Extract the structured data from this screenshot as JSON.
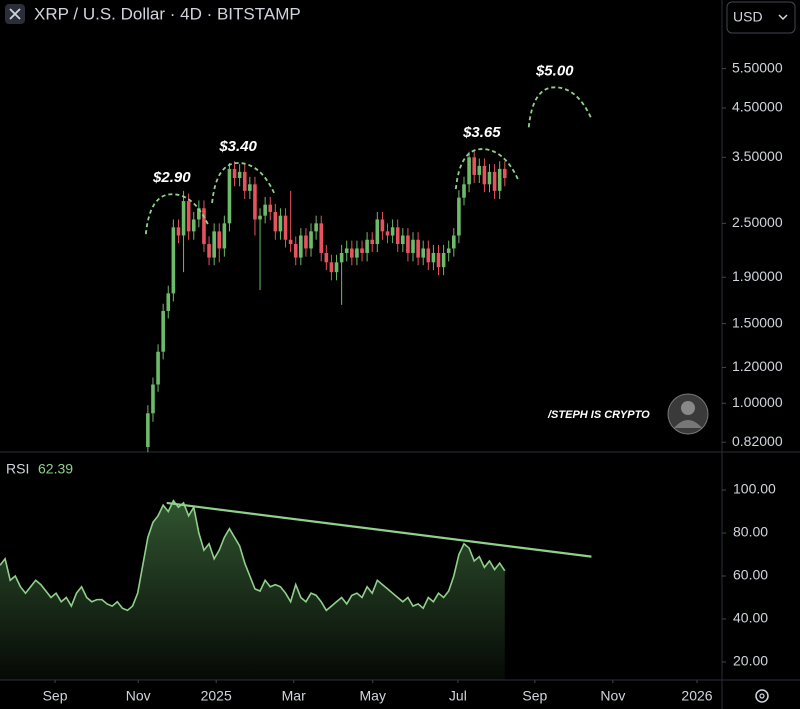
{
  "chart_data": {
    "type": "candlestick",
    "title": "XRP / U.S. Dollar · 4D · BITSTAMP",
    "currency": "USD",
    "log_scale": true,
    "up_color": "#6dbb6a",
    "down_color": "#e5535e",
    "xlim": [
      0,
      141.6
    ],
    "xticks": [
      {
        "value": 10.8,
        "label": "Sep"
      },
      {
        "value": 27.1,
        "label": "Nov"
      },
      {
        "value": 42.4,
        "label": "2025"
      },
      {
        "value": 57.6,
        "label": "Mar"
      },
      {
        "value": 73.1,
        "label": "May"
      },
      {
        "value": 89.8,
        "label": "Jul"
      },
      {
        "value": 104.9,
        "label": "Sep"
      },
      {
        "value": 120.2,
        "label": "Nov"
      },
      {
        "value": 136.7,
        "label": "2026"
      }
    ],
    "ylim": [
      0.78,
      7.8
    ],
    "yticks": [
      {
        "value": 5.5,
        "label": "5.50000"
      },
      {
        "value": 4.5,
        "label": "4.50000"
      },
      {
        "value": 3.5,
        "label": "3.50000"
      },
      {
        "value": 2.5,
        "label": "2.50000"
      },
      {
        "value": 1.9,
        "label": "1.90000"
      },
      {
        "value": 1.5,
        "label": "1.50000"
      },
      {
        "value": 1.2,
        "label": "1.20000"
      },
      {
        "value": 1.0,
        "label": "1.00000"
      },
      {
        "value": 0.82,
        "label": "0.82000"
      }
    ],
    "x": [
      29,
      30,
      31,
      32,
      33,
      34,
      35,
      36,
      37,
      38,
      39,
      40,
      41,
      42,
      43,
      44,
      45,
      46,
      47,
      48,
      49,
      50,
      51,
      52,
      53,
      54,
      55,
      56,
      57,
      58,
      59,
      60,
      61,
      62,
      63,
      64,
      65,
      66,
      67,
      68,
      69,
      70,
      71,
      72,
      73,
      74,
      75,
      76,
      77,
      78,
      79,
      80,
      81,
      82,
      83,
      84,
      85,
      86,
      87,
      88,
      89,
      90,
      91,
      92,
      93,
      94,
      95,
      96,
      97,
      98,
      99
    ],
    "open": [
      0.8,
      0.95,
      1.1,
      1.3,
      1.6,
      1.75,
      2.45,
      2.35,
      2.8,
      2.4,
      2.55,
      2.7,
      2.25,
      2.1,
      2.4,
      2.2,
      2.5,
      3.3,
      3.15,
      3.25,
      2.95,
      3.05,
      2.55,
      2.6,
      2.75,
      2.65,
      2.4,
      2.6,
      2.3,
      2.25,
      2.1,
      2.35,
      2.2,
      2.4,
      2.5,
      2.15,
      2.05,
      1.95,
      2.05,
      2.15,
      2.2,
      2.1,
      2.2,
      2.15,
      2.3,
      2.25,
      2.55,
      2.4,
      2.35,
      2.45,
      2.25,
      2.35,
      2.15,
      2.3,
      2.1,
      2.2,
      2.05,
      2.15,
      2.0,
      2.15,
      2.2,
      2.35,
      2.85,
      3.05,
      3.5,
      3.2,
      3.35,
      3.05,
      3.25,
      2.95,
      3.3
    ],
    "high": [
      0.99,
      1.14,
      1.35,
      1.66,
      1.82,
      2.55,
      2.55,
      2.95,
      2.91,
      2.65,
      2.81,
      2.81,
      2.34,
      2.5,
      2.5,
      2.6,
      3.4,
      3.43,
      3.38,
      3.38,
      3.17,
      3.17,
      2.7,
      2.86,
      2.86,
      2.76,
      2.7,
      2.7,
      2.95,
      2.34,
      2.44,
      2.44,
      2.5,
      2.6,
      2.6,
      2.24,
      2.13,
      2.13,
      2.24,
      2.29,
      2.29,
      2.29,
      2.29,
      2.39,
      2.39,
      2.65,
      2.65,
      2.5,
      2.55,
      2.55,
      2.44,
      2.44,
      2.39,
      2.39,
      2.29,
      2.29,
      2.24,
      2.24,
      2.24,
      2.29,
      2.44,
      2.96,
      3.17,
      3.6,
      3.64,
      3.48,
      3.48,
      3.38,
      3.38,
      3.43,
      3.43
    ],
    "low": [
      0.77,
      0.91,
      1.06,
      1.25,
      1.54,
      1.68,
      2.26,
      1.95,
      2.3,
      2.3,
      2.45,
      2.16,
      2.02,
      2.02,
      2.05,
      2.11,
      2.4,
      3.02,
      3.02,
      2.83,
      2.83,
      2.35,
      1.78,
      2.5,
      2.54,
      2.3,
      2.3,
      2.21,
      2.16,
      2.02,
      2.02,
      2.11,
      2.11,
      2.3,
      2.06,
      1.97,
      1.87,
      1.87,
      1.65,
      2.06,
      2.02,
      2.02,
      2.06,
      2.06,
      2.16,
      2.16,
      2.3,
      2.26,
      2.26,
      2.16,
      2.16,
      2.06,
      2.06,
      2.02,
      2.02,
      1.97,
      1.97,
      1.92,
      1.92,
      2.06,
      2.11,
      2.26,
      2.74,
      2.93,
      3.07,
      3.07,
      2.93,
      2.93,
      2.83,
      2.83,
      3.02
    ],
    "close": [
      0.95,
      1.1,
      1.3,
      1.6,
      1.75,
      2.45,
      2.35,
      2.8,
      2.4,
      2.55,
      2.7,
      2.25,
      2.1,
      2.4,
      2.2,
      2.5,
      3.3,
      3.15,
      3.25,
      2.95,
      3.05,
      2.55,
      2.6,
      2.75,
      2.65,
      2.4,
      2.6,
      2.3,
      2.25,
      2.1,
      2.35,
      2.2,
      2.4,
      2.5,
      2.15,
      2.05,
      1.95,
      2.05,
      2.15,
      2.2,
      2.1,
      2.2,
      2.15,
      2.3,
      2.25,
      2.55,
      2.4,
      2.35,
      2.45,
      2.25,
      2.35,
      2.15,
      2.3,
      2.1,
      2.2,
      2.05,
      2.15,
      2.0,
      2.15,
      2.2,
      2.35,
      2.85,
      3.05,
      3.5,
      3.2,
      3.35,
      3.05,
      3.25,
      2.95,
      3.3,
      3.15
    ],
    "annotations_color": "#8fd18a",
    "annotations": [
      {
        "value": 2.9,
        "label": "$2.90",
        "x": 33.7
      },
      {
        "value": 3.4,
        "label": "$3.40",
        "x": 46.7
      },
      {
        "value": 3.65,
        "label": "$3.65",
        "x": 94.5
      },
      {
        "value": 5.0,
        "label": "$5.00",
        "x": 108.8
      }
    ],
    "watermark": "/STEPH IS CRYPTO",
    "rsi": {
      "name": "RSI",
      "color": "#8fd18a",
      "ylim": [
        11.6,
        117.7
      ],
      "yticks": [
        {
          "value": 100,
          "label": "100.00"
        },
        {
          "value": 80,
          "label": "80.00"
        },
        {
          "value": 60,
          "label": "60.00"
        },
        {
          "value": 40,
          "label": "40.00"
        },
        {
          "value": 20,
          "label": "20.00"
        }
      ],
      "x": [
        0,
        1,
        2,
        3,
        4,
        5,
        6,
        7,
        8,
        9,
        10,
        11,
        12,
        13,
        14,
        15,
        16,
        17,
        18,
        19,
        20,
        21,
        22,
        23,
        24,
        25,
        26,
        27,
        28,
        29,
        30,
        31,
        32,
        33,
        34,
        35,
        36,
        37,
        38,
        39,
        40,
        41,
        42,
        43,
        44,
        45,
        46,
        47,
        48,
        49,
        50,
        51,
        52,
        53,
        54,
        55,
        56,
        57,
        58,
        59,
        60,
        61,
        62,
        63,
        64,
        65,
        66,
        67,
        68,
        69,
        70,
        71,
        72,
        73,
        74,
        75,
        76,
        77,
        78,
        79,
        80,
        81,
        82,
        83,
        84,
        85,
        86,
        87,
        88,
        89,
        90,
        91,
        92,
        93,
        94,
        95,
        96,
        97,
        98,
        99
      ],
      "values": [
        65,
        68,
        58,
        60,
        55,
        52,
        55,
        58,
        56,
        53,
        50,
        52,
        48,
        50,
        46,
        52,
        55,
        50,
        48,
        49,
        49,
        47,
        46,
        48,
        45,
        44,
        46,
        52,
        65,
        78,
        85,
        88,
        93,
        90,
        95,
        92,
        94,
        88,
        92,
        80,
        72,
        75,
        68,
        72,
        78,
        82,
        78,
        74,
        66,
        60,
        54,
        53,
        58,
        55,
        56,
        55,
        52,
        48,
        56,
        50,
        48,
        52,
        51,
        48,
        44,
        46,
        48,
        50,
        47,
        51,
        52,
        50,
        55,
        52,
        58,
        56,
        54,
        52,
        50,
        48,
        50,
        46,
        47,
        45,
        50,
        48,
        52,
        50,
        53,
        60,
        70,
        75,
        73,
        67,
        69,
        64,
        67,
        63,
        66,
        62.39
      ],
      "trendline": {
        "x": [
          32.7,
          116
        ],
        "values": [
          94,
          69
        ]
      }
    }
  }
}
